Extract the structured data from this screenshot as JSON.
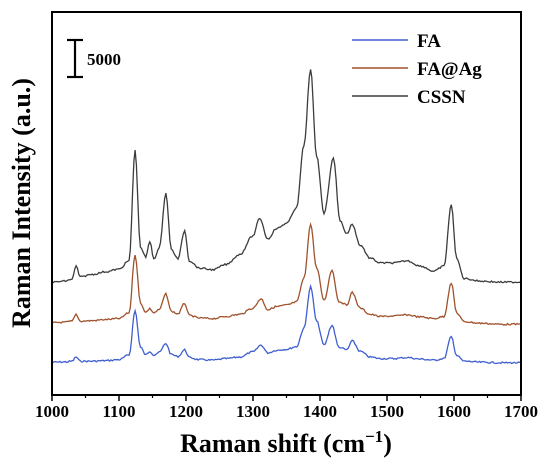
{
  "chart_data": {
    "type": "line",
    "title": "",
    "xlabel": "Raman shift (cm",
    "xlabel_superscript": "−1",
    "xlabel_close": ")",
    "ylabel": "Raman Intensity (a.u.)",
    "xlim": [
      1000,
      1700
    ],
    "x_ticks": [
      "1000",
      "1100",
      "1200",
      "1300",
      "1400",
      "1500",
      "1600",
      "1700"
    ],
    "y_ticks_shown": false,
    "scale_bar": {
      "label": "5000",
      "value": 5000
    },
    "legend_position": "top-right",
    "series": [
      {
        "name": "FA",
        "color": "#3f5fd0",
        "baseline": 0,
        "points": [
          [
            1000,
            1300
          ],
          [
            1020,
            1350
          ],
          [
            1030,
            1500
          ],
          [
            1036,
            2300
          ],
          [
            1042,
            1500
          ],
          [
            1060,
            1500
          ],
          [
            1080,
            1600
          ],
          [
            1100,
            1800
          ],
          [
            1115,
            2700
          ],
          [
            1124,
            11200
          ],
          [
            1132,
            4200
          ],
          [
            1140,
            2700
          ],
          [
            1146,
            3400
          ],
          [
            1152,
            2700
          ],
          [
            1160,
            3200
          ],
          [
            1170,
            4900
          ],
          [
            1178,
            2800
          ],
          [
            1188,
            2400
          ],
          [
            1198,
            3700
          ],
          [
            1205,
            2200
          ],
          [
            1220,
            1800
          ],
          [
            1240,
            1700
          ],
          [
            1260,
            2000
          ],
          [
            1280,
            2300
          ],
          [
            1300,
            3300
          ],
          [
            1312,
            4600
          ],
          [
            1322,
            3100
          ],
          [
            1335,
            3600
          ],
          [
            1350,
            3800
          ],
          [
            1365,
            4300
          ],
          [
            1376,
            7800
          ],
          [
            1386,
            15800
          ],
          [
            1395,
            9200
          ],
          [
            1406,
            4600
          ],
          [
            1418,
            8400
          ],
          [
            1428,
            4200
          ],
          [
            1440,
            3700
          ],
          [
            1448,
            5400
          ],
          [
            1460,
            3400
          ],
          [
            1475,
            2300
          ],
          [
            1490,
            2000
          ],
          [
            1510,
            2000
          ],
          [
            1530,
            2200
          ],
          [
            1550,
            1900
          ],
          [
            1570,
            1700
          ],
          [
            1585,
            2000
          ],
          [
            1596,
            6200
          ],
          [
            1604,
            2600
          ],
          [
            1615,
            1500
          ],
          [
            1640,
            1300
          ],
          [
            1670,
            1200
          ],
          [
            1700,
            1200
          ]
        ]
      },
      {
        "name": "FA@Ag",
        "color": "#a0522d",
        "baseline": 8000,
        "points": [
          [
            1000,
            900
          ],
          [
            1020,
            1000
          ],
          [
            1030,
            1200
          ],
          [
            1036,
            2500
          ],
          [
            1042,
            1200
          ],
          [
            1060,
            1300
          ],
          [
            1080,
            1500
          ],
          [
            1100,
            1700
          ],
          [
            1115,
            2800
          ],
          [
            1124,
            14000
          ],
          [
            1132,
            4700
          ],
          [
            1140,
            2900
          ],
          [
            1146,
            3600
          ],
          [
            1152,
            2800
          ],
          [
            1160,
            3400
          ],
          [
            1170,
            6400
          ],
          [
            1178,
            3100
          ],
          [
            1188,
            2600
          ],
          [
            1198,
            4600
          ],
          [
            1205,
            2300
          ],
          [
            1220,
            1800
          ],
          [
            1240,
            1700
          ],
          [
            1260,
            2100
          ],
          [
            1280,
            2500
          ],
          [
            1300,
            3700
          ],
          [
            1312,
            5500
          ],
          [
            1322,
            3400
          ],
          [
            1335,
            4000
          ],
          [
            1350,
            4300
          ],
          [
            1365,
            4900
          ],
          [
            1376,
            9400
          ],
          [
            1386,
            19800
          ],
          [
            1395,
            11400
          ],
          [
            1406,
            5200
          ],
          [
            1418,
            11000
          ],
          [
            1428,
            5000
          ],
          [
            1440,
            4300
          ],
          [
            1448,
            6700
          ],
          [
            1460,
            3700
          ],
          [
            1475,
            2500
          ],
          [
            1490,
            2100
          ],
          [
            1510,
            2200
          ],
          [
            1530,
            2400
          ],
          [
            1550,
            2000
          ],
          [
            1570,
            1700
          ],
          [
            1585,
            2100
          ],
          [
            1596,
            8500
          ],
          [
            1604,
            2800
          ],
          [
            1615,
            1100
          ],
          [
            1640,
            800
          ],
          [
            1670,
            600
          ],
          [
            1700,
            600
          ]
        ]
      },
      {
        "name": "CSSN",
        "color": "#3c3c3c",
        "baseline": 16000,
        "points": [
          [
            1000,
            700
          ],
          [
            1020,
            900
          ],
          [
            1030,
            1300
          ],
          [
            1036,
            3800
          ],
          [
            1042,
            1700
          ],
          [
            1060,
            2200
          ],
          [
            1080,
            2700
          ],
          [
            1100,
            3200
          ],
          [
            1115,
            4800
          ],
          [
            1124,
            26000
          ],
          [
            1132,
            7500
          ],
          [
            1140,
            5500
          ],
          [
            1146,
            8500
          ],
          [
            1152,
            5200
          ],
          [
            1160,
            7200
          ],
          [
            1170,
            17800
          ],
          [
            1178,
            7000
          ],
          [
            1188,
            5200
          ],
          [
            1198,
            10600
          ],
          [
            1205,
            4800
          ],
          [
            1220,
            3400
          ],
          [
            1240,
            3100
          ],
          [
            1260,
            4100
          ],
          [
            1280,
            6000
          ],
          [
            1300,
            9600
          ],
          [
            1310,
            13000
          ],
          [
            1322,
            9000
          ],
          [
            1335,
            11000
          ],
          [
            1350,
            12000
          ],
          [
            1365,
            15000
          ],
          [
            1376,
            27000
          ],
          [
            1386,
            41500
          ],
          [
            1395,
            25000
          ],
          [
            1406,
            14000
          ],
          [
            1420,
            24500
          ],
          [
            1430,
            12500
          ],
          [
            1440,
            10000
          ],
          [
            1448,
            11800
          ],
          [
            1460,
            7800
          ],
          [
            1475,
            5300
          ],
          [
            1490,
            4400
          ],
          [
            1510,
            4400
          ],
          [
            1530,
            4800
          ],
          [
            1550,
            3800
          ],
          [
            1570,
            2800
          ],
          [
            1585,
            3800
          ],
          [
            1596,
            15500
          ],
          [
            1604,
            5200
          ],
          [
            1615,
            1400
          ],
          [
            1640,
            900
          ],
          [
            1670,
            700
          ],
          [
            1700,
            700
          ]
        ]
      }
    ]
  }
}
